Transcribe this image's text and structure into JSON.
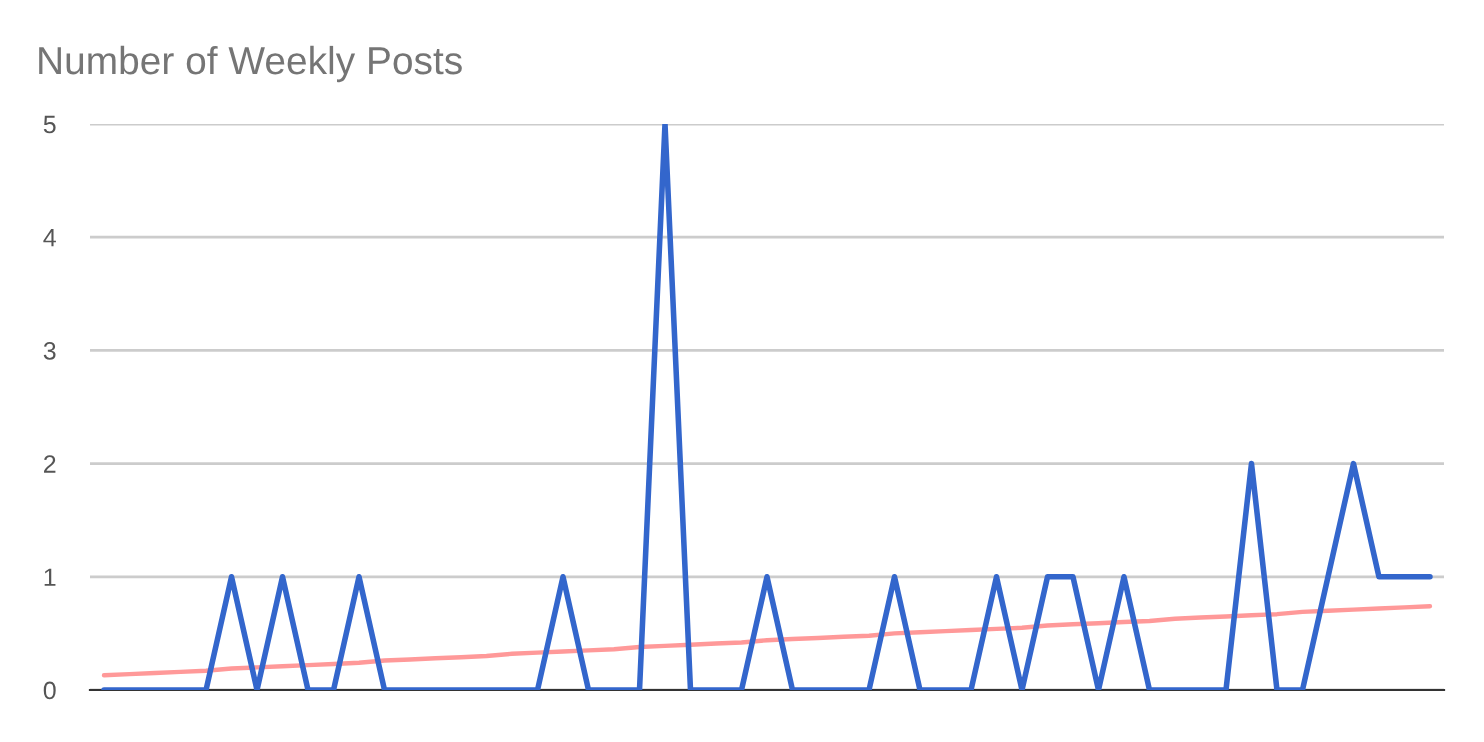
{
  "chart_data": {
    "type": "line",
    "title": "Number of Weekly Posts",
    "categories": [
      null,
      null,
      null,
      null,
      null,
      null,
      null,
      null,
      null,
      null,
      null,
      null,
      null,
      null,
      null,
      null,
      null,
      null,
      null,
      null,
      null,
      null,
      null,
      null,
      null,
      null,
      null,
      null,
      null,
      null,
      null,
      null,
      null,
      null,
      null,
      null,
      null,
      null,
      null,
      null,
      null,
      null,
      null,
      null,
      null,
      null,
      null,
      null,
      null,
      null,
      null,
      null,
      null
    ],
    "series": [
      {
        "color": "#3366cc",
        "values": [
          0,
          0,
          0,
          0,
          0,
          1,
          0,
          1,
          0,
          0,
          1,
          0,
          0,
          0,
          0,
          0,
          0,
          0,
          1,
          0,
          0,
          0,
          5,
          0,
          0,
          0,
          1,
          0,
          0,
          0,
          0,
          1,
          0,
          0,
          0,
          1,
          0,
          1,
          1,
          0,
          1,
          0,
          0,
          0,
          0,
          2,
          0,
          0,
          1,
          2,
          1,
          1,
          1
        ]
      },
      {
        "type": "line",
        "color": "#ff9999",
        "values": [
          0.13,
          0.14,
          0.15,
          0.16,
          0.17,
          0.19,
          0.2,
          0.21,
          0.22,
          0.23,
          0.24,
          0.26,
          0.27,
          0.28,
          0.29,
          0.3,
          0.32,
          0.33,
          0.34,
          0.35,
          0.36,
          0.38,
          0.39,
          0.4,
          0.41,
          0.42,
          0.44,
          0.45,
          0.46,
          0.47,
          0.48,
          0.5,
          0.51,
          0.52,
          0.53,
          0.54,
          0.55,
          0.57,
          0.58,
          0.59,
          0.6,
          0.61,
          0.63,
          0.64,
          0.65,
          0.66,
          0.67,
          0.69,
          0.7,
          0.71,
          0.72,
          0.73,
          0.74
        ]
      }
    ],
    "ylim": [
      0,
      5
    ],
    "yticks": [
      0,
      1,
      2,
      3,
      4,
      5
    ],
    "grid": "y",
    "tick_labels": "y",
    "marker": "none",
    "line_style": "solid"
  }
}
